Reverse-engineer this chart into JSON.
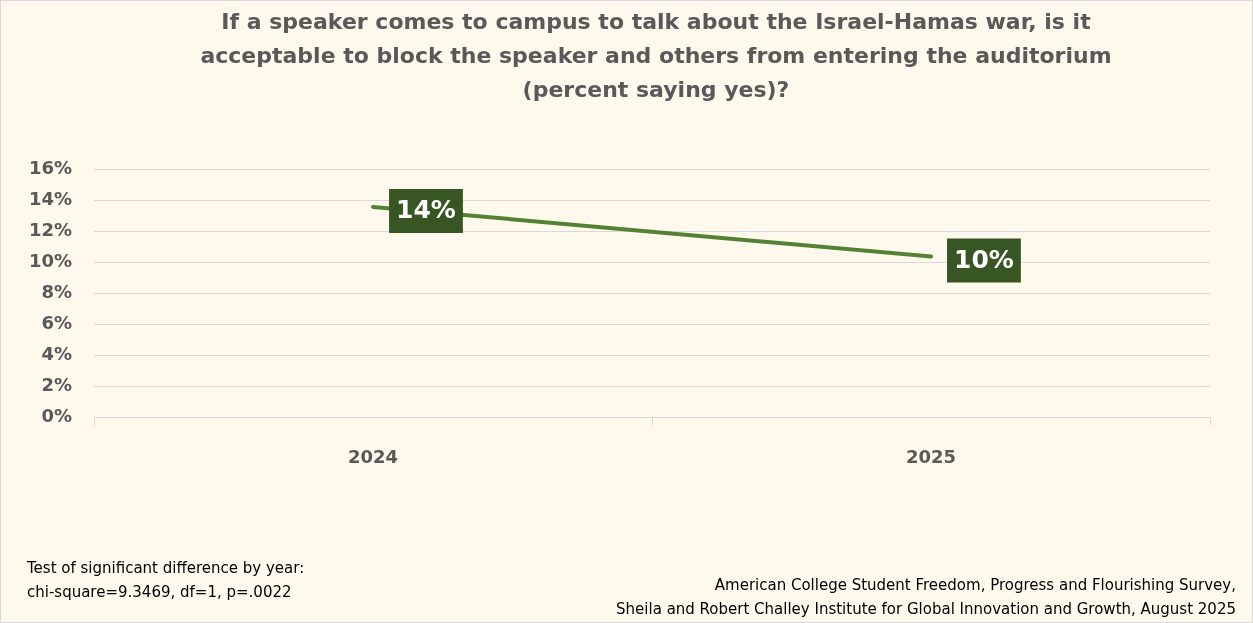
{
  "chart_data": {
    "type": "line",
    "title": "If a speaker comes to campus to talk about the Israel-Hamas war, is it acceptable to block the speaker and others from entering the auditorium (percent saying yes)?",
    "categories": [
      "2024",
      "2025"
    ],
    "series": [
      {
        "color": "#548235",
        "values": [
          13.6,
          10.4
        ],
        "value_labels": [
          "14%",
          "10%"
        ]
      }
    ],
    "ylim": [
      0,
      16
    ],
    "yticks": [
      {
        "value": 0,
        "label": "0%"
      },
      {
        "value": 2,
        "label": "2%"
      },
      {
        "value": 4,
        "label": "4%"
      },
      {
        "value": 6,
        "label": "6%"
      },
      {
        "value": 8,
        "label": "8%"
      },
      {
        "value": 10,
        "label": "10%"
      },
      {
        "value": 12,
        "label": "12%"
      },
      {
        "value": 14,
        "label": "14%"
      },
      {
        "value": 16,
        "label": "16%"
      }
    ],
    "grid": "y",
    "legend": false,
    "marker": "none",
    "line_style": "solid",
    "annotations": [
      "Test of significant difference by year:\nchi-square=9.3469, df=1, p=.0022",
      "American College Student Freedom, Progress and Flourishing Survey,\nSheila and Robert Challey Institute for Global Innovation and Growth, August 2025"
    ]
  }
}
